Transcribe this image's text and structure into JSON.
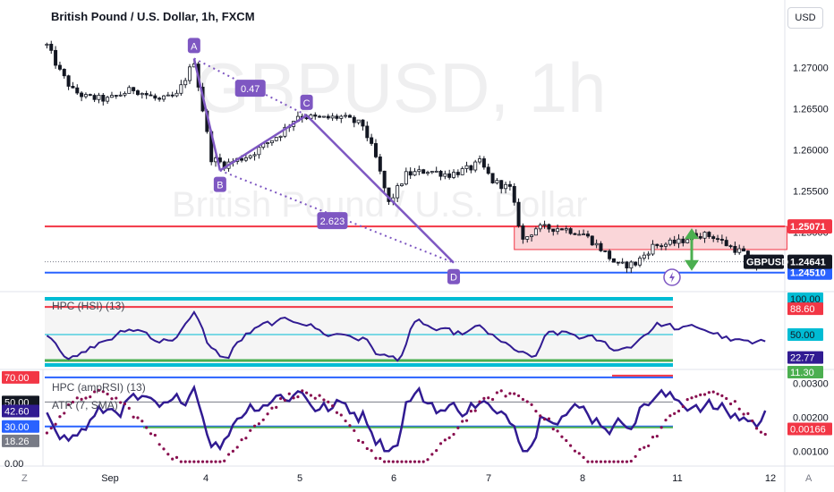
{
  "header": {
    "title": "British Pound / U.S. Dollar, 1h, FXCM",
    "currency_button": "USD"
  },
  "watermark": {
    "symbol": "GBPUSD, 1h",
    "name": "British Pound / U.S. Dollar"
  },
  "colors": {
    "up": "#26a69a",
    "down": "#ef5350",
    "candle": "#131722",
    "resistance": "#f23645",
    "support": "#2962ff",
    "pattern": "#7e57c2",
    "rsi_line": "#311b92",
    "atr_dots": "#880e4f",
    "hsi_upper_band": "#00bcd4",
    "hsi_red_level": "#f23645",
    "green_level": "#4caf50",
    "arrow": "#4caf50",
    "zone_fill": "#f8c8cc"
  },
  "chart_data": [
    {
      "type": "candlestick",
      "title": "British Pound / U.S. Dollar, 1h, FXCM",
      "x_ticks": [
        "Sep",
        "4",
        "5",
        "6",
        "7",
        "8",
        "11",
        "12"
      ],
      "ylim": [
        1.2429,
        1.2744
      ],
      "y_ticks": [
        "1.27000",
        "1.26500",
        "1.26000",
        "1.25500",
        "1.25000"
      ],
      "path_keypoints": [
        {
          "t": 0,
          "price": 1.2727
        },
        {
          "t": 3,
          "price": 1.2695
        },
        {
          "t": 6,
          "price": 1.2672
        },
        {
          "t": 9,
          "price": 1.2664
        },
        {
          "t": 14,
          "price": 1.2661
        },
        {
          "t": 20,
          "price": 1.2674
        },
        {
          "t": 26,
          "price": 1.266
        },
        {
          "t": 30,
          "price": 1.2666
        },
        {
          "t": 34,
          "price": 1.2708
        },
        {
          "t": 38,
          "price": 1.259
        },
        {
          "t": 41,
          "price": 1.2582
        },
        {
          "t": 47,
          "price": 1.2594
        },
        {
          "t": 54,
          "price": 1.262
        },
        {
          "t": 58,
          "price": 1.2642
        },
        {
          "t": 63,
          "price": 1.2638
        },
        {
          "t": 68,
          "price": 1.264
        },
        {
          "t": 73,
          "price": 1.263
        },
        {
          "t": 76,
          "price": 1.259
        },
        {
          "t": 79,
          "price": 1.2535
        },
        {
          "t": 83,
          "price": 1.257
        },
        {
          "t": 88,
          "price": 1.2575
        },
        {
          "t": 93,
          "price": 1.257
        },
        {
          "t": 98,
          "price": 1.2578
        },
        {
          "t": 100,
          "price": 1.2585
        },
        {
          "t": 103,
          "price": 1.2562
        },
        {
          "t": 107,
          "price": 1.2553
        },
        {
          "t": 110,
          "price": 1.249
        },
        {
          "t": 113,
          "price": 1.2505
        },
        {
          "t": 119,
          "price": 1.2505
        },
        {
          "t": 124,
          "price": 1.2498
        },
        {
          "t": 128,
          "price": 1.248
        },
        {
          "t": 132,
          "price": 1.2459
        },
        {
          "t": 136,
          "price": 1.2462
        },
        {
          "t": 140,
          "price": 1.2483
        },
        {
          "t": 146,
          "price": 1.2488
        },
        {
          "t": 150,
          "price": 1.2498
        },
        {
          "t": 154,
          "price": 1.2495
        },
        {
          "t": 158,
          "price": 1.2482
        },
        {
          "t": 161,
          "price": 1.2475
        },
        {
          "t": 163,
          "price": 1.2458
        },
        {
          "t": 166,
          "price": 1.2464
        }
      ],
      "horizontal_lines": [
        {
          "name": "resistance",
          "price": 1.25071,
          "label": "1.25071"
        },
        {
          "name": "support",
          "price": 1.2451,
          "label": "1.24510"
        },
        {
          "name": "last-price",
          "price": 1.24641,
          "label": "1.24641",
          "symbol": "GBPUSD"
        }
      ],
      "zone": {
        "t_start": 108,
        "t_end": 171,
        "price_top": 1.25071,
        "price_bottom": 1.2479
      },
      "pattern_points": [
        {
          "label": "A",
          "t": 34,
          "price": 1.2711
        },
        {
          "label": "B",
          "t": 40,
          "price": 1.2575
        },
        {
          "label": "C",
          "t": 60,
          "price": 1.2642
        },
        {
          "label": "D",
          "t": 94,
          "price": 1.2463
        }
      ],
      "pattern_ratios": [
        "0.47",
        "2.623"
      ]
    },
    {
      "type": "line",
      "title": "HPC (HSI) (13)",
      "ylim": [
        5,
        105
      ],
      "levels": [
        {
          "name": "upper-band",
          "value": 100.0,
          "label": "100.00"
        },
        {
          "name": "red-level",
          "value": 88.6,
          "label": "88.60"
        },
        {
          "name": "middle",
          "value": 50.0,
          "label": "50.00"
        },
        {
          "name": "green-level",
          "value": 11.3,
          "label": "11.30"
        }
      ],
      "current_label": "22.77"
    },
    {
      "type": "line",
      "title": "HPC (ampRSI) (13)",
      "secondary_title": "ATR (7, SMA)",
      "ylim": [
        0,
        75
      ],
      "secondary_ylim": [
        0.00065,
        0.00335
      ],
      "levels": [
        {
          "name": "upper",
          "value": 70.0,
          "label": "70.00"
        },
        {
          "name": "middle",
          "value": 50.0,
          "label": "50.00"
        },
        {
          "name": "lower",
          "value": 30.0,
          "label": "30.00"
        }
      ],
      "left_labels": [
        "70.00",
        "50.00",
        "42.60",
        "30.00",
        "18.26",
        "0.00"
      ],
      "right_ticks": [
        "0.00300",
        "0.00200",
        "0.00100"
      ],
      "atr_current_label": "0.00166"
    }
  ],
  "footer": {
    "left_marker": "Z",
    "right_marker": "A"
  }
}
